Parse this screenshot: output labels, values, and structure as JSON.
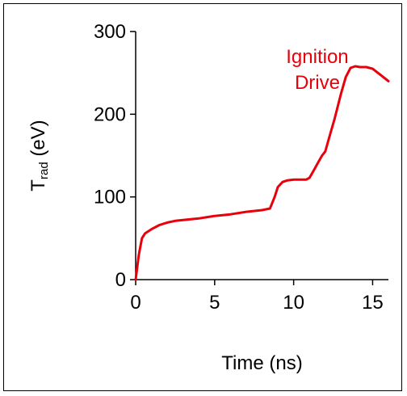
{
  "chart_data": {
    "type": "line",
    "xlabel": "Time (ns)",
    "ylabel_main": "T",
    "ylabel_sub": "rad",
    "ylabel_unit": " (eV)",
    "xlim": [
      0,
      16
    ],
    "ylim": [
      0,
      300
    ],
    "xticks": [
      0,
      5,
      10,
      15
    ],
    "yticks": [
      0,
      100,
      200,
      300
    ],
    "grid": false,
    "series": [
      {
        "color": "#e8000b",
        "x": [
          0,
          0.2,
          0.4,
          0.6,
          1,
          1.5,
          2,
          2.5,
          3,
          4,
          5,
          6,
          7,
          8,
          8.5,
          8.8,
          9,
          9.3,
          9.6,
          10,
          10.5,
          10.8,
          11,
          11.3,
          11.5,
          11.8,
          12,
          12.3,
          12.6,
          13,
          13.3,
          13.6,
          13.9,
          14.2,
          14.6,
          15,
          15.4,
          15.8,
          16
        ],
        "y": [
          0,
          30,
          50,
          56,
          61,
          66,
          69,
          71,
          72,
          74,
          77,
          79,
          82,
          84,
          86,
          100,
          112,
          118,
          120,
          121,
          121,
          121,
          123,
          133,
          140,
          150,
          155,
          175,
          195,
          225,
          245,
          256,
          258,
          257,
          257,
          255,
          249,
          243,
          240
        ]
      }
    ],
    "annotations": [
      {
        "lines": [
          "Ignition",
          "Drive"
        ],
        "color": "#e8000b",
        "x": 11.5,
        "y": 262
      }
    ]
  }
}
